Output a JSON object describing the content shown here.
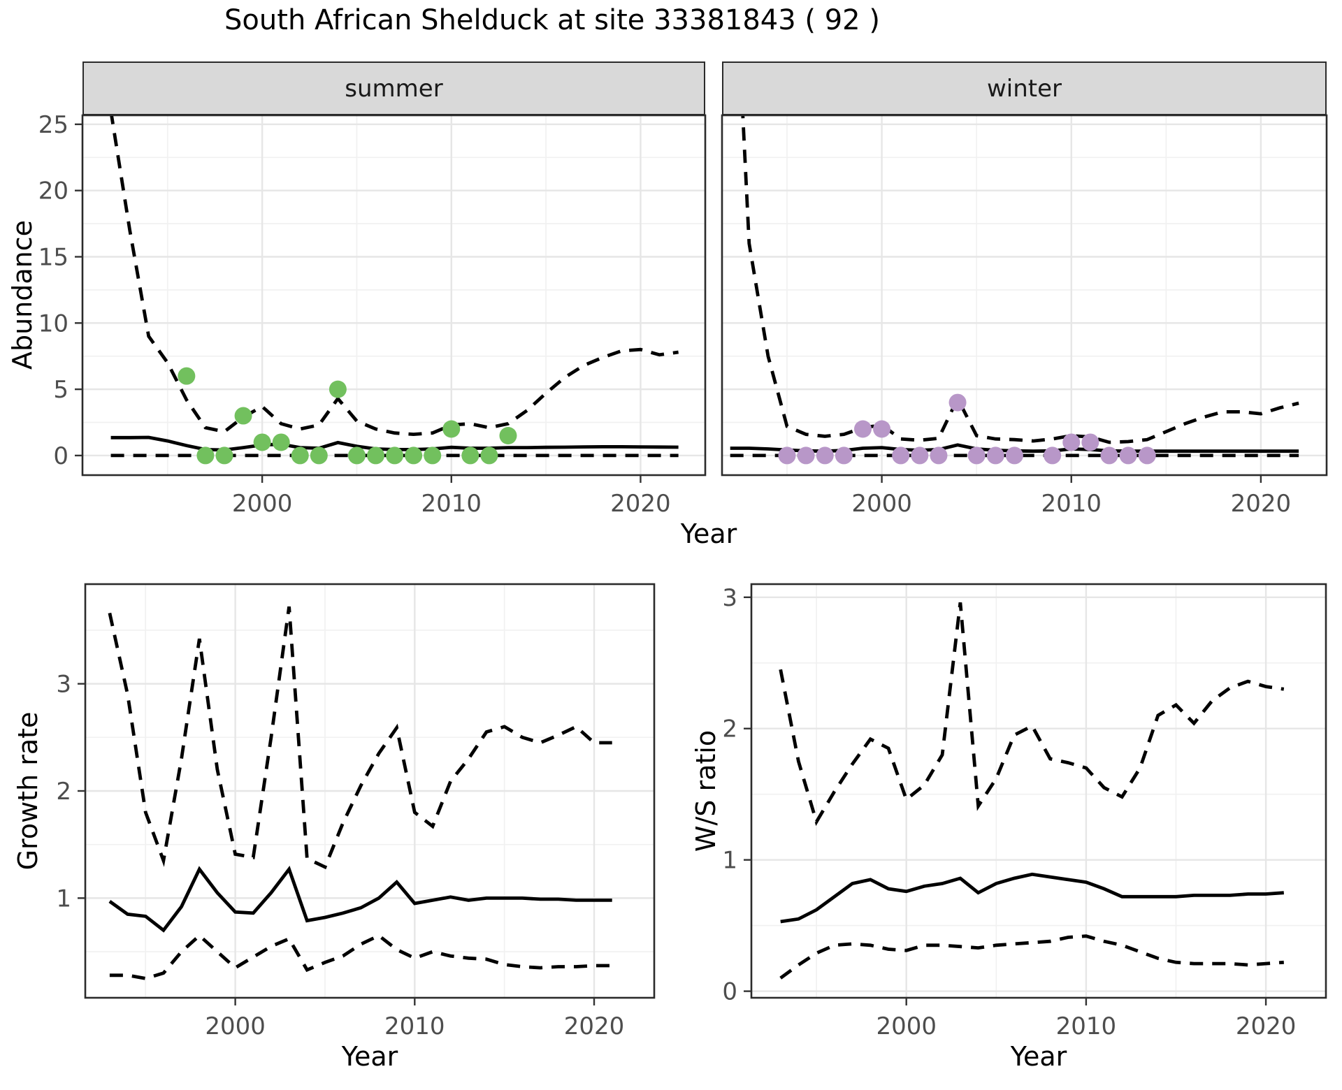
{
  "figure": {
    "title": "South African Shelduck at site 33381843 ( 92 )",
    "facets": {
      "summer": "summer",
      "winter": "winter"
    },
    "colors": {
      "summer_points": "#72C05E",
      "winter_points": "#B897C8",
      "line": "#000000",
      "strip_background": "#D9D9D9",
      "grid_major": "#E6E6E6",
      "grid_minor": "#F1F1F1"
    },
    "axis": {
      "top_xlabel": "Year",
      "bottom_left_xlabel": "Year",
      "bottom_right_xlabel": "Year",
      "abundance_ylabel": "Abundance",
      "growth_ylabel": "Growth rate",
      "ws_ylabel": "W/S ratio"
    }
  },
  "chart_data": [
    {
      "id": "abundance-summer",
      "type": "line",
      "facet": "summer",
      "xlabel": "Year",
      "ylabel": "Abundance",
      "xlim": [
        1990.5,
        2023.42
      ],
      "ylim": [
        -1.48,
        25.68
      ],
      "x_ticks": [
        2000,
        2010,
        2020
      ],
      "x_minor": [
        1995,
        2005,
        2015
      ],
      "y_ticks": [
        0,
        5,
        10,
        15,
        20,
        25
      ],
      "y_minor": [
        2.5,
        7.5,
        12.5,
        17.5,
        22.5
      ],
      "show_y_tick_labels": true,
      "x": [
        1992,
        1993,
        1994,
        1995,
        1996,
        1997,
        1998,
        1999,
        2000,
        2001,
        2002,
        2003,
        2004,
        2005,
        2006,
        2007,
        2008,
        2009,
        2010,
        2011,
        2012,
        2013,
        2014,
        2015,
        2016,
        2017,
        2018,
        2019,
        2020,
        2021,
        2022
      ],
      "series": [
        {
          "name": "fitted_abundance",
          "style": "solid",
          "values": [
            1.35,
            1.35,
            1.37,
            1.1,
            0.75,
            0.45,
            0.42,
            0.6,
            0.8,
            0.85,
            0.6,
            0.55,
            0.98,
            0.7,
            0.5,
            0.45,
            0.45,
            0.5,
            0.62,
            0.55,
            0.55,
            0.6,
            0.6,
            0.62,
            0.63,
            0.65,
            0.66,
            0.66,
            0.65,
            0.64,
            0.63
          ]
        },
        {
          "name": "upper_ci",
          "style": "dashed",
          "values": [
            26,
            17,
            9,
            7,
            4.2,
            2.1,
            1.8,
            2.9,
            3.7,
            2.4,
            2.0,
            2.3,
            4.3,
            2.6,
            2.0,
            1.7,
            1.6,
            1.7,
            2.3,
            2.4,
            2.1,
            2.4,
            3.4,
            4.7,
            5.9,
            6.8,
            7.4,
            7.9,
            8.0,
            7.6,
            7.8
          ]
        },
        {
          "name": "lower_ci",
          "style": "dashed",
          "values": [
            0,
            0,
            0,
            0,
            0,
            0,
            0,
            0,
            0,
            0,
            0,
            0,
            0,
            0,
            0,
            0,
            0,
            0,
            0,
            0,
            0,
            0,
            0,
            0,
            0,
            0,
            0,
            0,
            0,
            0,
            0
          ]
        }
      ],
      "points": {
        "name": "summer_counts",
        "color": "#72C05E",
        "data": [
          [
            1996,
            6
          ],
          [
            1997,
            0
          ],
          [
            1998,
            0
          ],
          [
            1999,
            3
          ],
          [
            2000,
            1
          ],
          [
            2001,
            1
          ],
          [
            2002,
            0
          ],
          [
            2003,
            0
          ],
          [
            2004,
            5
          ],
          [
            2005,
            0
          ],
          [
            2006,
            0
          ],
          [
            2007,
            0
          ],
          [
            2008,
            0
          ],
          [
            2009,
            0
          ],
          [
            2010,
            2
          ],
          [
            2011,
            0
          ],
          [
            2012,
            0
          ],
          [
            2013,
            1.5
          ]
        ]
      }
    },
    {
      "id": "abundance-winter",
      "type": "line",
      "facet": "winter",
      "xlabel": "Year",
      "ylabel": "Abundance",
      "xlim": [
        1991.57,
        2023.47
      ],
      "ylim": [
        -1.48,
        25.68
      ],
      "x_ticks": [
        2000,
        2010,
        2020
      ],
      "x_minor": [
        1995,
        2005,
        2015
      ],
      "y_ticks": [
        0,
        5,
        10,
        15,
        20,
        25
      ],
      "y_minor": [
        2.5,
        7.5,
        12.5,
        17.5,
        22.5
      ],
      "show_y_tick_labels": false,
      "x": [
        1992,
        1993,
        1994,
        1995,
        1996,
        1997,
        1998,
        1999,
        2000,
        2001,
        2002,
        2003,
        2004,
        2005,
        2006,
        2007,
        2008,
        2009,
        2010,
        2011,
        2012,
        2013,
        2014,
        2015,
        2016,
        2017,
        2018,
        2019,
        2020,
        2021,
        2022
      ],
      "series": [
        {
          "name": "fitted_abundance",
          "style": "solid",
          "values": [
            0.55,
            0.55,
            0.5,
            0.42,
            0.35,
            0.33,
            0.38,
            0.55,
            0.6,
            0.45,
            0.4,
            0.45,
            0.8,
            0.5,
            0.4,
            0.35,
            0.33,
            0.35,
            0.5,
            0.45,
            0.35,
            0.33,
            0.33,
            0.33,
            0.33,
            0.33,
            0.33,
            0.33,
            0.33,
            0.33,
            0.33
          ]
        },
        {
          "name": "upper_ci",
          "style": "dashed",
          "values": [
            45,
            16,
            7.5,
            2.2,
            1.6,
            1.45,
            1.6,
            2.1,
            2.3,
            1.25,
            1.15,
            1.3,
            4.3,
            1.5,
            1.25,
            1.2,
            1.1,
            1.25,
            1.5,
            1.4,
            1.0,
            1.05,
            1.2,
            1.8,
            2.4,
            2.9,
            3.3,
            3.3,
            3.15,
            3.6,
            3.95
          ]
        },
        {
          "name": "lower_ci",
          "style": "dashed",
          "values": [
            0,
            0,
            0,
            0,
            0,
            0,
            0,
            0,
            0,
            0,
            0,
            0,
            0,
            0,
            0,
            0,
            0,
            0,
            0,
            0,
            0,
            0,
            0,
            0,
            0,
            0,
            0,
            0,
            0,
            0,
            0
          ]
        }
      ],
      "points": {
        "name": "winter_counts",
        "color": "#B897C8",
        "data": [
          [
            1995,
            0
          ],
          [
            1996,
            0
          ],
          [
            1997,
            0
          ],
          [
            1998,
            0
          ],
          [
            1999,
            2
          ],
          [
            2000,
            2
          ],
          [
            2001,
            0
          ],
          [
            2002,
            0
          ],
          [
            2003,
            0
          ],
          [
            2004,
            4
          ],
          [
            2005,
            0
          ],
          [
            2006,
            0
          ],
          [
            2007,
            0
          ],
          [
            2009,
            0
          ],
          [
            2010,
            1
          ],
          [
            2011,
            1
          ],
          [
            2012,
            0
          ],
          [
            2013,
            0
          ],
          [
            2014,
            0
          ]
        ]
      }
    },
    {
      "id": "growth-rate",
      "type": "line",
      "facet": null,
      "xlabel": "Year",
      "ylabel": "Growth rate",
      "xlim": [
        1991.64,
        2023.35
      ],
      "ylim": [
        0.07,
        3.93
      ],
      "x_ticks": [
        2000,
        2010,
        2020
      ],
      "x_minor": [
        1995,
        2005,
        2015
      ],
      "y_ticks": [
        1,
        2,
        3
      ],
      "y_minor": [
        0.5,
        1.5,
        2.5,
        3.5
      ],
      "show_y_tick_labels": true,
      "x": [
        1993,
        1994,
        1995,
        1996,
        1997,
        1998,
        1999,
        2000,
        2001,
        2002,
        2003,
        2004,
        2005,
        2006,
        2007,
        2008,
        2009,
        2010,
        2011,
        2012,
        2013,
        2014,
        2015,
        2016,
        2017,
        2018,
        2019,
        2020,
        2021
      ],
      "series": [
        {
          "name": "growth_rate",
          "style": "solid",
          "values": [
            0.97,
            0.85,
            0.83,
            0.7,
            0.92,
            1.27,
            1.05,
            0.87,
            0.86,
            1.05,
            1.27,
            0.79,
            0.82,
            0.86,
            0.91,
            1.0,
            1.15,
            0.95,
            0.98,
            1.01,
            0.98,
            1.0,
            1.0,
            1.0,
            0.99,
            0.99,
            0.98,
            0.98,
            0.98
          ]
        },
        {
          "name": "upper_ci",
          "style": "dashed",
          "values": [
            3.66,
            2.9,
            1.8,
            1.35,
            2.3,
            3.42,
            2.2,
            1.41,
            1.38,
            2.5,
            3.72,
            1.37,
            1.29,
            1.7,
            2.05,
            2.35,
            2.59,
            1.8,
            1.67,
            2.09,
            2.3,
            2.55,
            2.6,
            2.5,
            2.45,
            2.52,
            2.6,
            2.45,
            2.45
          ]
        },
        {
          "name": "lower_ci",
          "style": "dashed",
          "values": [
            0.28,
            0.28,
            0.25,
            0.3,
            0.5,
            0.65,
            0.5,
            0.35,
            0.45,
            0.55,
            0.62,
            0.33,
            0.4,
            0.46,
            0.57,
            0.65,
            0.52,
            0.44,
            0.5,
            0.46,
            0.44,
            0.43,
            0.38,
            0.36,
            0.35,
            0.36,
            0.36,
            0.37,
            0.37
          ]
        }
      ],
      "points": null
    },
    {
      "id": "ws-ratio",
      "type": "line",
      "facet": null,
      "xlabel": "Year",
      "ylabel": "W/S ratio",
      "xlim": [
        1991.38,
        2023.34
      ],
      "ylim": [
        -0.05,
        3.1
      ],
      "x_ticks": [
        2000,
        2010,
        2020
      ],
      "x_minor": [
        1995,
        2005,
        2015
      ],
      "y_ticks": [
        0,
        1,
        2,
        3
      ],
      "y_minor": [
        0.5,
        1.5,
        2.5
      ],
      "show_y_tick_labels": true,
      "x": [
        1993,
        1994,
        1995,
        1996,
        1997,
        1998,
        1999,
        2000,
        2001,
        2002,
        2003,
        2004,
        2005,
        2006,
        2007,
        2008,
        2009,
        2010,
        2011,
        2012,
        2013,
        2014,
        2015,
        2016,
        2017,
        2018,
        2019,
        2020,
        2021
      ],
      "series": [
        {
          "name": "ws_ratio",
          "style": "solid",
          "values": [
            0.53,
            0.55,
            0.62,
            0.72,
            0.82,
            0.85,
            0.78,
            0.76,
            0.8,
            0.82,
            0.86,
            0.75,
            0.82,
            0.86,
            0.89,
            0.87,
            0.85,
            0.83,
            0.78,
            0.72,
            0.72,
            0.72,
            0.72,
            0.73,
            0.73,
            0.73,
            0.74,
            0.74,
            0.75
          ]
        },
        {
          "name": "upper_ci",
          "style": "dashed",
          "values": [
            2.45,
            1.75,
            1.29,
            1.52,
            1.73,
            1.92,
            1.85,
            1.46,
            1.57,
            1.8,
            2.96,
            1.41,
            1.62,
            1.95,
            2.02,
            1.77,
            1.74,
            1.7,
            1.55,
            1.48,
            1.7,
            2.1,
            2.18,
            2.04,
            2.21,
            2.31,
            2.36,
            2.32,
            2.3
          ]
        },
        {
          "name": "lower_ci",
          "style": "dashed",
          "values": [
            0.1,
            0.2,
            0.29,
            0.35,
            0.36,
            0.35,
            0.32,
            0.31,
            0.35,
            0.35,
            0.34,
            0.33,
            0.35,
            0.36,
            0.37,
            0.38,
            0.41,
            0.42,
            0.38,
            0.35,
            0.3,
            0.25,
            0.22,
            0.21,
            0.21,
            0.21,
            0.2,
            0.21,
            0.22
          ]
        }
      ],
      "points": null
    }
  ]
}
